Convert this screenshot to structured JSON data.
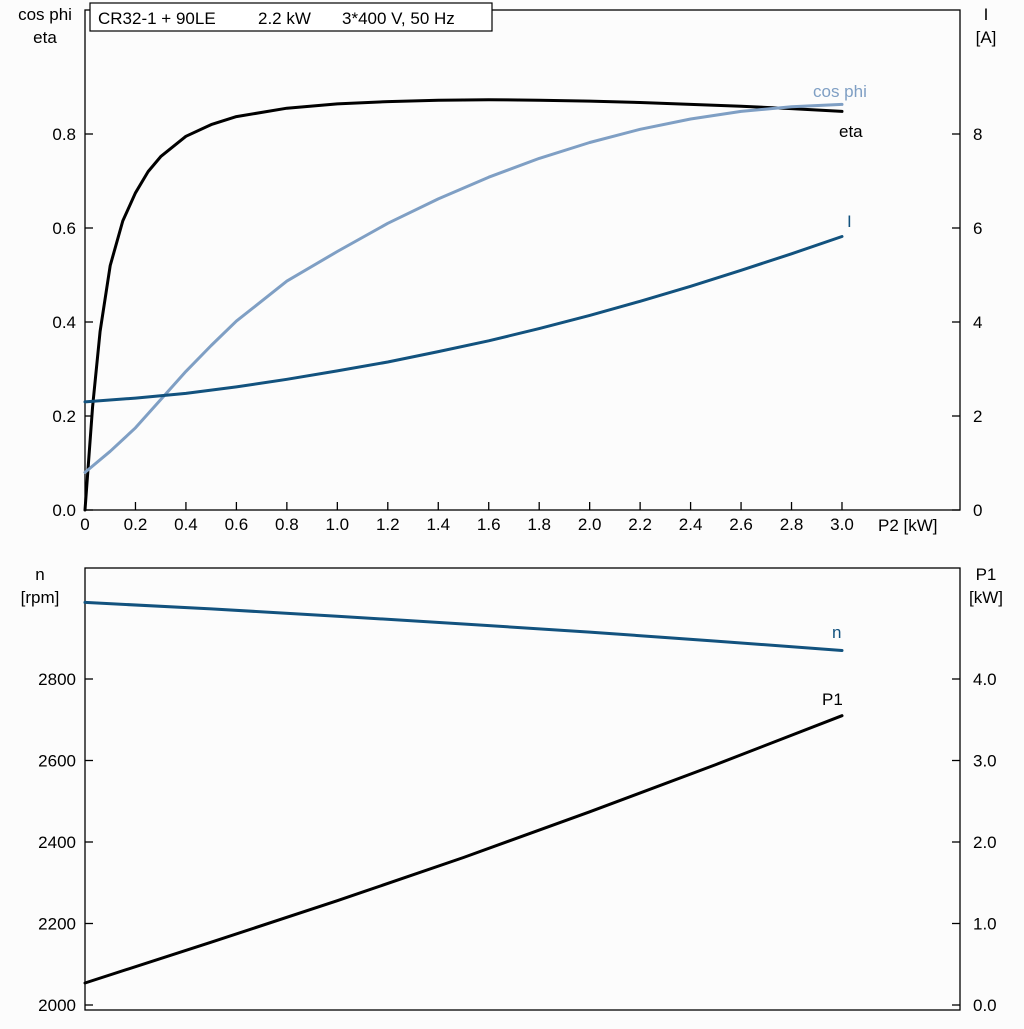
{
  "title": {
    "full": "CR32-1 + 90LE   2.2 kW   3*400 V, 50 Hz",
    "part1": "CR32-1 + 90LE",
    "part2": "2.2 kW",
    "part3": "3*400 V, 50 Hz"
  },
  "axis_labels": {
    "top_left_1": "cos phi",
    "top_left_2": "eta",
    "top_right_1": "I",
    "top_right_2": "[A]",
    "x_label": "P2 [kW]",
    "bottom_left_1": "n",
    "bottom_left_2": "[rpm]",
    "bottom_right_1": "P1",
    "bottom_right_2": "[kW]"
  },
  "colors": {
    "black_curve": "#000000",
    "light_blue_curve": "#7f9fc4",
    "dark_blue_curve": "#12527e",
    "axis": "#000000",
    "background": "#fcfcfc"
  },
  "chart_data": [
    {
      "type": "line",
      "title": "CR32-1 + 90LE   2.2 kW   3*400 V, 50 Hz",
      "xlabel": "P2 [kW]",
      "ylabel_left": "cos phi / eta",
      "ylabel_right": "I [A]",
      "grid": false,
      "legend_position": "inline-labels",
      "x_range": [
        0,
        3.47
      ],
      "y_left_range": [
        0,
        1.06
      ],
      "y_right_range": [
        0,
        10.6
      ],
      "x_ticks": [
        {
          "value": 0.0,
          "label": "0"
        },
        {
          "value": 0.2,
          "label": "0.2"
        },
        {
          "value": 0.4,
          "label": "0.4"
        },
        {
          "value": 0.6,
          "label": "0.6"
        },
        {
          "value": 0.8,
          "label": "0.8"
        },
        {
          "value": 1.0,
          "label": "1.0"
        },
        {
          "value": 1.2,
          "label": "1.2"
        },
        {
          "value": 1.4,
          "label": "1.4"
        },
        {
          "value": 1.6,
          "label": "1.6"
        },
        {
          "value": 1.8,
          "label": "1.8"
        },
        {
          "value": 2.0,
          "label": "2.0"
        },
        {
          "value": 2.2,
          "label": "2.2"
        },
        {
          "value": 2.4,
          "label": "2.4"
        },
        {
          "value": 2.6,
          "label": "2.6"
        },
        {
          "value": 2.8,
          "label": "2.8"
        },
        {
          "value": 3.0,
          "label": "3.0"
        }
      ],
      "y_left": {
        "label": "cos phi / eta",
        "ticks": [
          {
            "value": 0.0,
            "label": "0.0"
          },
          {
            "value": 0.2,
            "label": "0.2"
          },
          {
            "value": 0.4,
            "label": "0.4"
          },
          {
            "value": 0.6,
            "label": "0.6"
          },
          {
            "value": 0.8,
            "label": "0.8"
          }
        ]
      },
      "y_right": {
        "label": "I [A]",
        "ticks": [
          {
            "value": 0,
            "label": "0"
          },
          {
            "value": 2,
            "label": "2"
          },
          {
            "value": 4,
            "label": "4"
          },
          {
            "value": 6,
            "label": "6"
          },
          {
            "value": 8,
            "label": "8"
          }
        ]
      },
      "series": [
        {
          "name": "eta",
          "axis": "left",
          "color": "#000000",
          "x": [
            0,
            0.03,
            0.06,
            0.1,
            0.15,
            0.2,
            0.25,
            0.3,
            0.4,
            0.5,
            0.6,
            0.8,
            1.0,
            1.2,
            1.4,
            1.6,
            1.8,
            2.0,
            2.2,
            2.4,
            2.6,
            2.8,
            3.0
          ],
          "y": [
            0,
            0.22,
            0.38,
            0.52,
            0.615,
            0.675,
            0.72,
            0.752,
            0.795,
            0.82,
            0.837,
            0.855,
            0.864,
            0.869,
            0.872,
            0.873,
            0.872,
            0.87,
            0.867,
            0.863,
            0.859,
            0.854,
            0.848
          ]
        },
        {
          "name": "cos phi",
          "axis": "left",
          "color": "#7f9fc4",
          "x": [
            0,
            0.1,
            0.2,
            0.3,
            0.4,
            0.5,
            0.6,
            0.8,
            1.0,
            1.2,
            1.4,
            1.6,
            1.8,
            2.0,
            2.2,
            2.4,
            2.6,
            2.8,
            3.0
          ],
          "y": [
            0.08,
            0.125,
            0.175,
            0.235,
            0.295,
            0.35,
            0.402,
            0.487,
            0.55,
            0.61,
            0.662,
            0.708,
            0.748,
            0.782,
            0.81,
            0.832,
            0.848,
            0.858,
            0.863
          ]
        },
        {
          "name": "I",
          "axis": "right",
          "color": "#12527e",
          "x": [
            0,
            0.2,
            0.4,
            0.6,
            0.8,
            1.0,
            1.2,
            1.4,
            1.6,
            1.8,
            2.0,
            2.2,
            2.4,
            2.6,
            2.8,
            3.0
          ],
          "y": [
            2.3,
            2.38,
            2.48,
            2.62,
            2.78,
            2.96,
            3.15,
            3.37,
            3.6,
            3.86,
            4.14,
            4.44,
            4.76,
            5.1,
            5.45,
            5.82
          ]
        }
      ]
    },
    {
      "type": "line",
      "title": "",
      "xlabel": "",
      "ylabel_left": "n [rpm]",
      "ylabel_right": "P1 [kW]",
      "grid": false,
      "legend_position": "inline-labels",
      "x_range": [
        0,
        3.47
      ],
      "y_left_range": [
        1988,
        3072
      ],
      "y_right_range": [
        -0.06,
        5.36
      ],
      "x_ticks": [],
      "y_left": {
        "label": "n [rpm]",
        "ticks": [
          {
            "value": 2000,
            "label": "2000"
          },
          {
            "value": 2200,
            "label": "2200"
          },
          {
            "value": 2400,
            "label": "2400"
          },
          {
            "value": 2600,
            "label": "2600"
          },
          {
            "value": 2800,
            "label": "2800"
          }
        ]
      },
      "y_right": {
        "label": "P1 [kW]",
        "ticks": [
          {
            "value": 0.0,
            "label": "0.0"
          },
          {
            "value": 1.0,
            "label": "1.0"
          },
          {
            "value": 2.0,
            "label": "2.0"
          },
          {
            "value": 3.0,
            "label": "3.0"
          },
          {
            "value": 4.0,
            "label": "4.0"
          }
        ]
      },
      "series": [
        {
          "name": "n",
          "axis": "left",
          "color": "#12527e",
          "x": [
            0,
            0.5,
            1.0,
            1.5,
            2.0,
            2.5,
            3.0
          ],
          "y": [
            2988,
            2972,
            2954,
            2935,
            2915,
            2893,
            2870
          ]
        },
        {
          "name": "P1",
          "axis": "right",
          "color": "#000000",
          "x": [
            0,
            0.5,
            1.0,
            1.5,
            2.0,
            2.5,
            3.0
          ],
          "y": [
            0.27,
            0.77,
            1.28,
            1.81,
            2.37,
            2.95,
            3.55
          ]
        }
      ]
    }
  ]
}
